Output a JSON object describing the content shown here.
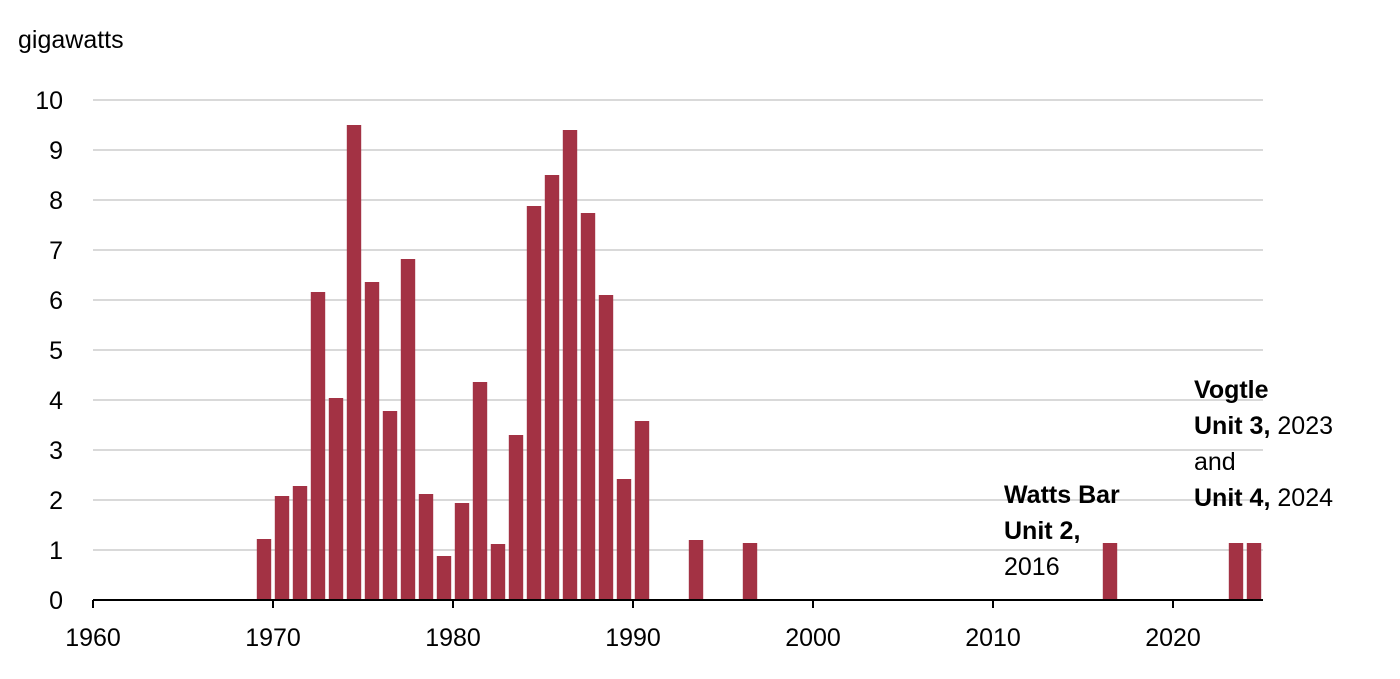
{
  "chart_data": {
    "type": "bar",
    "y_label": "gigawatts",
    "color": "#a33244",
    "grid": true,
    "x": [
      1969,
      1970,
      1971,
      1972,
      1973,
      1974,
      1975,
      1976,
      1977,
      1978,
      1979,
      1980,
      1981,
      1982,
      1983,
      1984,
      1985,
      1986,
      1987,
      1988,
      1989,
      1990,
      1993,
      1996,
      2016,
      2023,
      2024
    ],
    "values": [
      1.22,
      2.08,
      2.28,
      6.16,
      4.04,
      9.5,
      6.36,
      3.78,
      6.82,
      2.12,
      0.88,
      1.94,
      4.36,
      1.12,
      3.3,
      7.88,
      8.5,
      9.4,
      7.74,
      6.1,
      2.42,
      3.58,
      1.2,
      1.14,
      1.14,
      1.14,
      1.14
    ],
    "xlim": [
      1960,
      2025
    ],
    "xticks": [
      1960,
      1970,
      1980,
      1990,
      2000,
      2010,
      2020
    ],
    "ylim": [
      0,
      10
    ],
    "yticks": [
      0,
      1,
      2,
      3,
      4,
      5,
      6,
      7,
      8,
      9,
      10
    ],
    "annotations": [
      {
        "lines": [
          [
            {
              "text": "Watts Bar",
              "bold": true
            }
          ],
          [
            {
              "text": "Unit 2,",
              "bold": true
            }
          ],
          [
            {
              "text": "2016",
              "bold": false
            }
          ]
        ]
      },
      {
        "lines": [
          [
            {
              "text": "Vogtle",
              "bold": true
            }
          ],
          [
            {
              "text": "Unit 3,",
              "bold": true
            },
            {
              "text": "2023",
              "bold": false
            }
          ],
          [
            {
              "text": "and",
              "bold": false
            }
          ],
          [
            {
              "text": "Unit 4,",
              "bold": true
            },
            {
              "text": "2024",
              "bold": false
            }
          ]
        ]
      }
    ]
  }
}
